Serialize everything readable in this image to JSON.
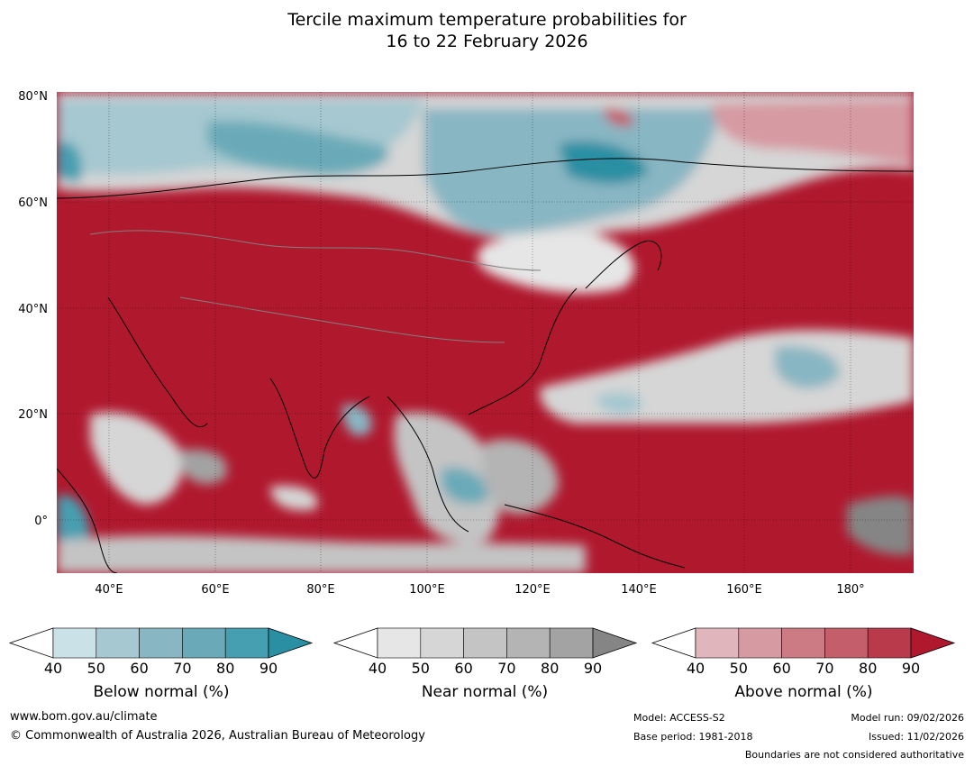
{
  "title_line1": "Tercile maximum temperature probabilities for",
  "title_line2": "16 to 22 February 2026",
  "map": {
    "lon_range": [
      30,
      192
    ],
    "lat_range": [
      -10,
      81
    ],
    "lat_ticks": [
      "80°N",
      "60°N",
      "40°N",
      "20°N",
      "0°"
    ],
    "lon_ticks": [
      "40°E",
      "60°E",
      "80°E",
      "100°E",
      "120°E",
      "140°E",
      "160°E",
      "180°"
    ],
    "gridlines": true
  },
  "legends": [
    {
      "label": "Below normal (%)",
      "ticks": [
        "40",
        "50",
        "60",
        "70",
        "80",
        "90"
      ],
      "colors": [
        "#c9e1e7",
        "#a6c8d0",
        "#89b6c3",
        "#6aaab8",
        "#469fb0",
        "#2b8fa3"
      ]
    },
    {
      "label": "Near normal (%)",
      "ticks": [
        "40",
        "50",
        "60",
        "70",
        "80",
        "90"
      ],
      "colors": [
        "#e6e6e6",
        "#d6d6d6",
        "#c4c4c4",
        "#b4b4b4",
        "#a3a3a3",
        "#858585"
      ]
    },
    {
      "label": "Above normal (%)",
      "ticks": [
        "40",
        "50",
        "60",
        "70",
        "80",
        "90"
      ],
      "colors": [
        "#e0b6bc",
        "#d69aa2",
        "#cc7a84",
        "#c45e6a",
        "#b93a4a",
        "#b0182e"
      ]
    }
  ],
  "footer": {
    "website": "www.bom.gov.au/climate",
    "copyright": "© Commonwealth of Australia 2026, Australian Bureau of Meteorology",
    "model": "Model: ACCESS-S2",
    "base_period": "Base period: 1981-2018",
    "model_run": "Model run: 09/02/2026",
    "issued": "Issued: 11/02/2026",
    "disclaimer": "Boundaries are not considered authoritative"
  }
}
